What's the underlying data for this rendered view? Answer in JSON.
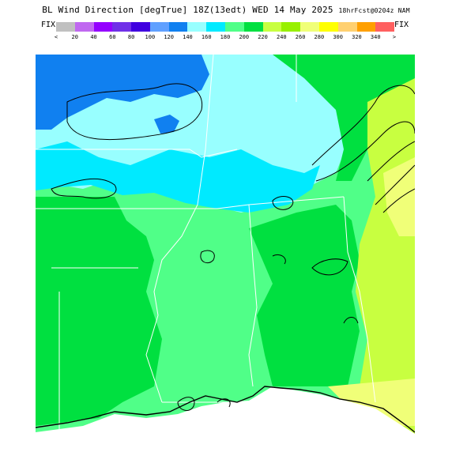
{
  "title": {
    "main": "BL Wind Direction [degTrue] 18Z(13edt) WED 14 May 2025",
    "forecast": "18hrFcst@0204z NAM"
  },
  "legend": {
    "fix_left": "FIX",
    "fix_right": "FIX",
    "ticks": [
      "<",
      "20",
      "40",
      "60",
      "80",
      "100",
      "120",
      "140",
      "160",
      "180",
      "200",
      "220",
      "240",
      "260",
      "280",
      "300",
      "320",
      "340",
      ">"
    ],
    "colors": [
      "#c0c0c0",
      "#c068f0",
      "#9400ff",
      "#7030e8",
      "#4000e0",
      "#60a0ff",
      "#1080f0",
      "#98ffff",
      "#00eaff",
      "#50ff88",
      "#00e040",
      "#c8ff40",
      "#98f000",
      "#f0ff78",
      "#ffff00",
      "#ffd070",
      "#ffa000",
      "#ff6060"
    ]
  },
  "map": {
    "ocean_color": "#ffffff",
    "region_colors": {
      "north_blue": "#1080f0",
      "cyan": "#98ffff",
      "cyan_deep": "#00eaff",
      "green_light": "#50ff88",
      "green": "#00e040",
      "yellow_green": "#c8ff40",
      "yellow": "#f0ff78"
    }
  }
}
